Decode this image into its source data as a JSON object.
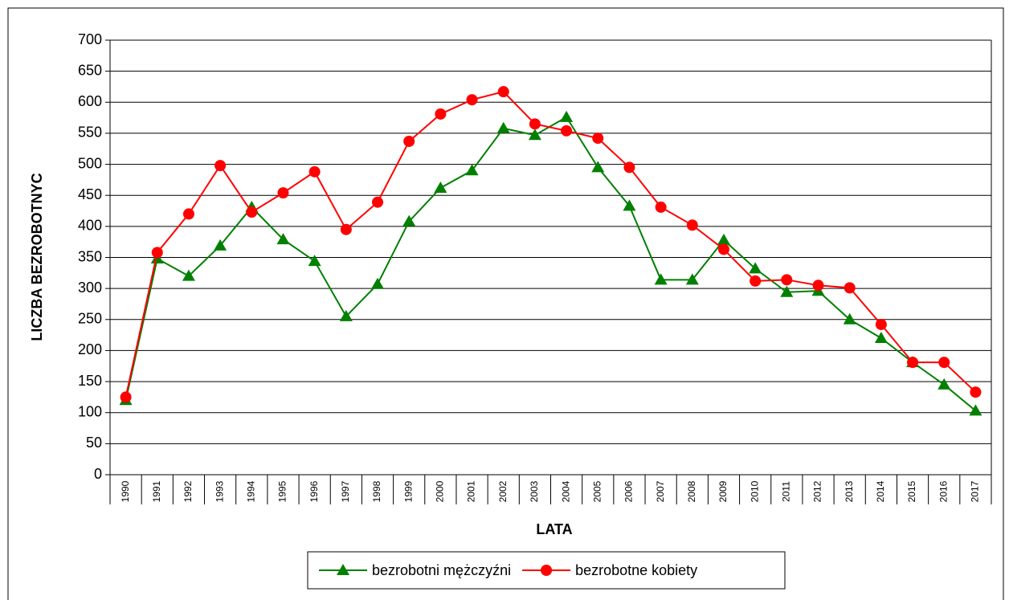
{
  "chart_data": {
    "type": "line",
    "x_label": "LATA",
    "y_label": "LICZBA BEZROBOTNYC",
    "categories": [
      "1990",
      "1991",
      "1992",
      "1993",
      "1994",
      "1995",
      "1996",
      "1997",
      "1998",
      "1999",
      "2000",
      "2001",
      "2002",
      "2003",
      "2004",
      "2005",
      "2006",
      "2007",
      "2008",
      "2009",
      "2010",
      "2011",
      "2012",
      "2013",
      "2014",
      "2015",
      "2016",
      "2017"
    ],
    "series": [
      {
        "name": "bezrobotni mężczyźni",
        "color": "#008000",
        "marker": "triangle",
        "values": [
          120,
          348,
          320,
          369,
          431,
          379,
          344,
          255,
          307,
          408,
          462,
          490,
          558,
          547,
          576,
          495,
          433,
          314,
          314,
          378,
          332,
          294,
          296,
          250,
          220,
          181,
          145,
          103
        ]
      },
      {
        "name": "bezrobotne kobiety",
        "color": "#ff0000",
        "marker": "circle",
        "values": [
          125,
          358,
          420,
          498,
          423,
          454,
          488,
          395,
          439,
          537,
          581,
          604,
          617,
          565,
          554,
          542,
          495,
          431,
          402,
          363,
          312,
          314,
          305,
          301,
          242,
          181,
          181,
          133
        ]
      }
    ],
    "ylim": [
      0,
      700
    ],
    "yticks": [
      0,
      50,
      100,
      150,
      200,
      250,
      300,
      350,
      400,
      450,
      500,
      550,
      600,
      650,
      700
    ],
    "grid": true,
    "legend": "bottom"
  }
}
